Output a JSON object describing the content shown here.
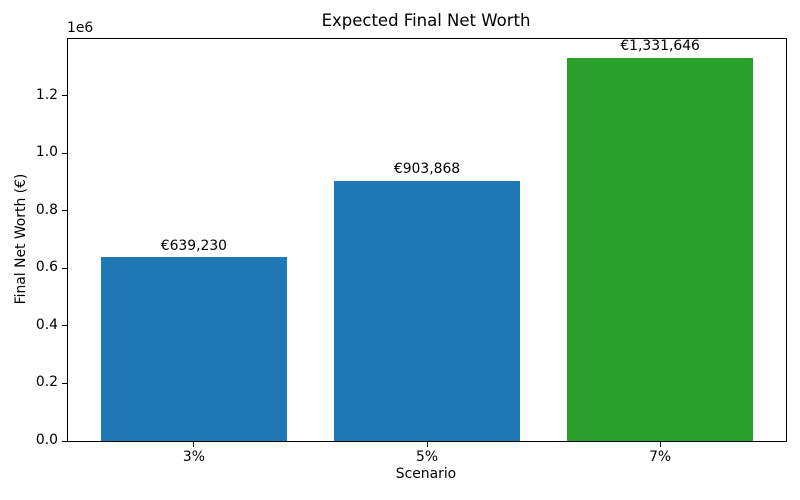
{
  "chart_data": {
    "type": "bar",
    "title": "Expected Final Net Worth",
    "xlabel": "Scenario",
    "ylabel": "Final Net Worth (€)",
    "categories": [
      "3%",
      "5%",
      "7%"
    ],
    "values": [
      639230,
      903868,
      1331646
    ],
    "value_labels": [
      "€639,230",
      "€903,868",
      "€1,331,646"
    ],
    "bar_colors": [
      "#1f77b4",
      "#1f77b4",
      "#2ca02c"
    ],
    "bar_width_frac": 0.8,
    "x_margin_frac": 0.05,
    "ylim": [
      0,
      1398228
    ],
    "yticks": [
      0,
      200000,
      400000,
      600000,
      800000,
      1000000,
      1200000
    ],
    "ytick_labels": [
      "0.0",
      "0.2",
      "0.4",
      "0.6",
      "0.8",
      "1.0",
      "1.2"
    ],
    "y_offset_label": "1e6",
    "grid": false,
    "legend": null,
    "axis_color": "#000000",
    "background_color": "#ffffff"
  }
}
